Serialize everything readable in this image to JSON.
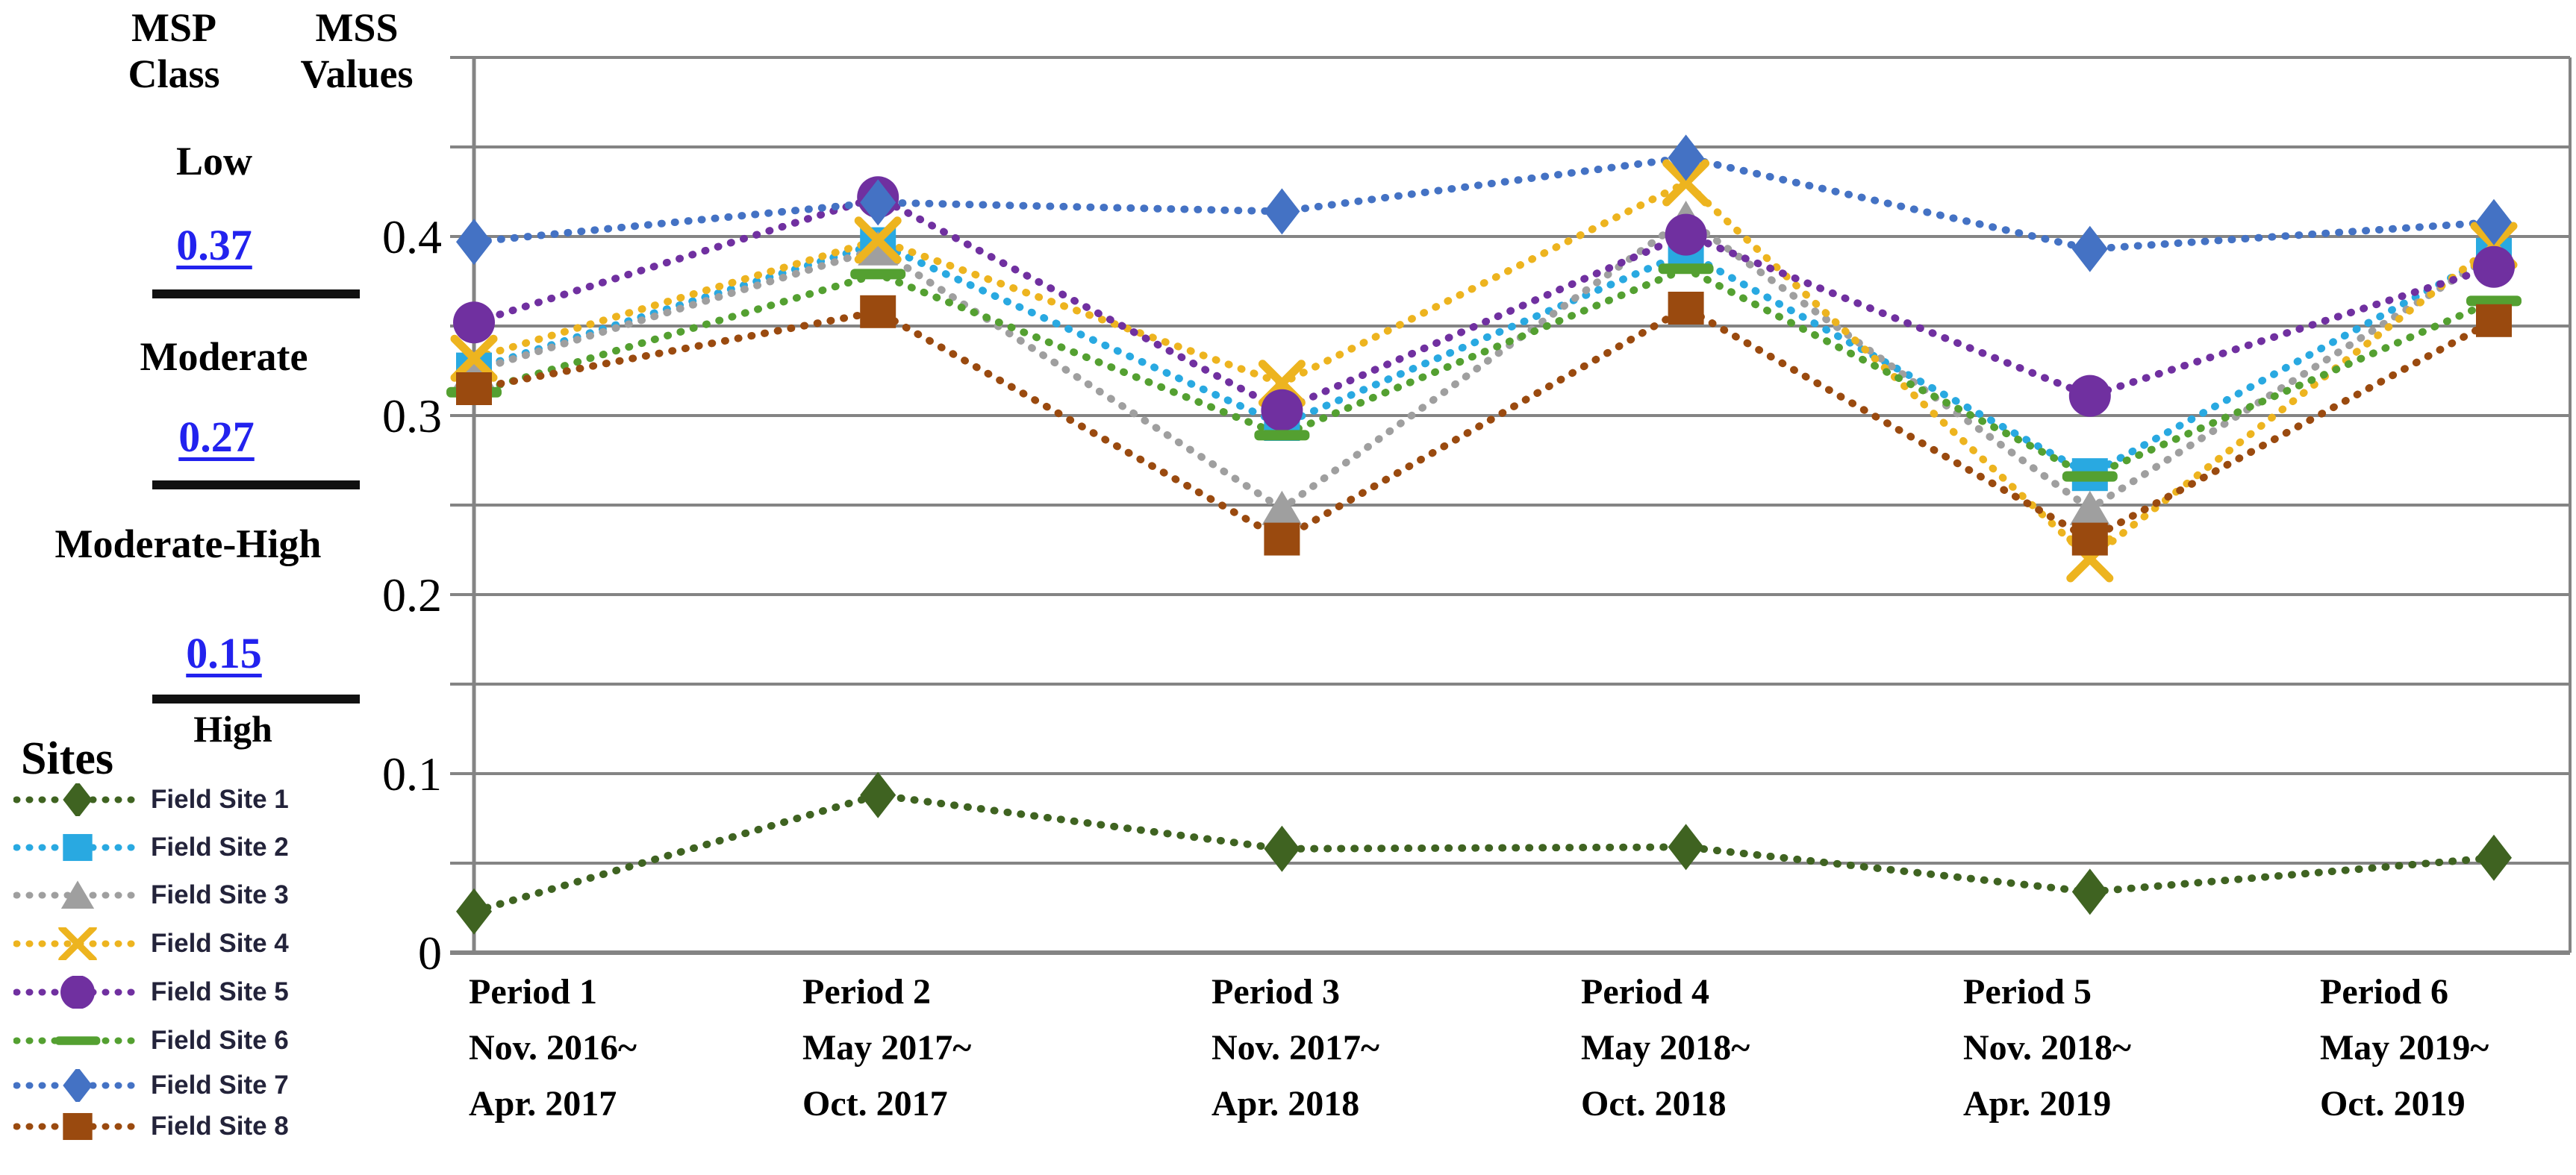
{
  "left_panel": {
    "msp_header": [
      "MSP",
      "Class"
    ],
    "mss_header": [
      "MSS",
      "Values"
    ],
    "classes": [
      {
        "label": "Low",
        "threshold": "0.37"
      },
      {
        "label": "Moderate",
        "threshold": "0.27"
      },
      {
        "label": "Moderate-High",
        "threshold": "0.15"
      },
      {
        "label": "High",
        "threshold": ""
      }
    ],
    "threshold_color": "#2222ee",
    "sites_header": "Sites"
  },
  "chart_data": {
    "type": "line",
    "title": "",
    "ylabel": "MSS Values",
    "xlabel": "",
    "line_style": "dotted",
    "grid": true,
    "y_axis": {
      "min": 0,
      "max": 0.5,
      "gridline_step": 0.05,
      "tick_labels": [
        {
          "value": 0,
          "label": "0"
        },
        {
          "value": 0.1,
          "label": "0.1"
        },
        {
          "value": 0.2,
          "label": "0.2"
        },
        {
          "value": 0.3,
          "label": "0.3"
        },
        {
          "value": 0.4,
          "label": "0.4"
        }
      ]
    },
    "x_categories": [
      {
        "period": "Period 1",
        "range_start": "Nov. 2016~",
        "range_end": "Apr. 2017"
      },
      {
        "period": "Period 2",
        "range_start": "May 2017~",
        "range_end": "Oct. 2017"
      },
      {
        "period": "Period 3",
        "range_start": "Nov. 2017~",
        "range_end": "Apr. 2018"
      },
      {
        "period": "Period 4",
        "range_start": "May 2018~",
        "range_end": "Oct. 2018"
      },
      {
        "period": "Period 5",
        "range_start": "Nov. 2018~",
        "range_end": "Apr. 2019"
      },
      {
        "period": "Period 6",
        "range_start": "May 2019~",
        "range_end": "Oct. 2019"
      }
    ],
    "series": [
      {
        "name": "Field Site 1",
        "color": "#3f6321",
        "marker": "diamond",
        "values": [
          0.023,
          0.088,
          0.058,
          0.059,
          0.034,
          0.053
        ]
      },
      {
        "name": "Field Site 2",
        "color": "#29a9e1",
        "marker": "square",
        "values": [
          0.326,
          0.396,
          0.295,
          0.391,
          0.267,
          0.39
        ]
      },
      {
        "name": "Field Site 3",
        "color": "#9f9f9f",
        "marker": "triangle",
        "values": [
          0.325,
          0.393,
          0.248,
          0.41,
          0.248,
          0.39
        ]
      },
      {
        "name": "Field Site 4",
        "color": "#edb41f",
        "marker": "x",
        "values": [
          0.332,
          0.398,
          0.318,
          0.43,
          0.22,
          0.395
        ]
      },
      {
        "name": "Field Site 5",
        "color": "#7030a0",
        "marker": "circle",
        "values": [
          0.352,
          0.422,
          0.303,
          0.401,
          0.311,
          0.383
        ]
      },
      {
        "name": "Field Site 6",
        "color": "#54a031",
        "marker": "dash",
        "values": [
          0.313,
          0.379,
          0.289,
          0.382,
          0.266,
          0.364
        ]
      },
      {
        "name": "Field Site 7",
        "color": "#4472c4",
        "marker": "diamond",
        "values": [
          0.397,
          0.419,
          0.414,
          0.444,
          0.393,
          0.408
        ]
      },
      {
        "name": "Field Site 8",
        "color": "#9a4a0f",
        "marker": "square",
        "values": [
          0.315,
          0.358,
          0.231,
          0.36,
          0.231,
          0.353
        ]
      }
    ],
    "legend_position": "bottom-left"
  }
}
